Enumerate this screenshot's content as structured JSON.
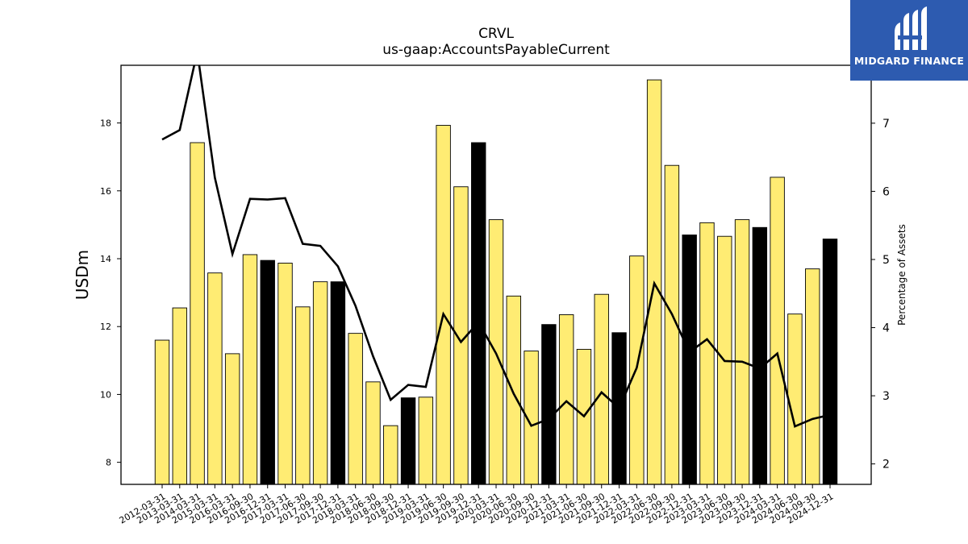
{
  "chart_data": {
    "type": "bar",
    "title": "CRVL",
    "subtitle": "us-gaap:AccountsPayableCurrent",
    "ylabel": "USDm",
    "y2label": "Percentage of Assets",
    "ylim": [
      7.35,
      19.7
    ],
    "y2lim": [
      1.7,
      7.85
    ],
    "yticks": [
      8,
      10,
      12,
      14,
      16,
      18
    ],
    "y2ticks": [
      2,
      3,
      4,
      5,
      6,
      7
    ],
    "colors": {
      "bar_quarter": "#ffec73",
      "bar_year_end": "#000000",
      "line": "#000000"
    },
    "categories": [
      "2012-03-31",
      "2013-03-31",
      "2014-03-31",
      "2015-03-31",
      "2016-03-31",
      "2016-09-30",
      "2016-12-31",
      "2017-03-31",
      "2017-06-30",
      "2017-09-30",
      "2017-12-31",
      "2018-03-31",
      "2018-06-30",
      "2018-09-30",
      "2018-12-31",
      "2019-03-31",
      "2019-06-30",
      "2019-09-30",
      "2019-12-31",
      "2020-03-31",
      "2020-06-30",
      "2020-09-30",
      "2020-12-31",
      "2021-03-31",
      "2021-06-30",
      "2021-09-30",
      "2021-12-31",
      "2022-03-31",
      "2022-06-30",
      "2022-09-30",
      "2022-12-31",
      "2023-03-31",
      "2023-06-30",
      "2023-09-30",
      "2023-12-31",
      "2024-03-31",
      "2024-06-30",
      "2024-09-30",
      "2024-12-31"
    ],
    "series": [
      {
        "values": [
          11.6,
          12.55,
          17.42,
          13.58,
          11.2,
          14.12,
          13.95,
          13.87,
          12.58,
          13.32,
          13.32,
          11.8,
          10.37,
          9.08,
          9.9,
          9.92,
          17.93,
          16.12,
          17.42,
          15.15,
          12.9,
          11.28,
          12.06,
          12.35,
          11.33,
          12.95,
          11.82,
          14.08,
          19.27,
          16.75,
          14.7,
          15.06,
          14.66,
          15.15,
          14.92,
          16.4,
          12.37,
          13.7,
          14.58
        ],
        "year_end": [
          false,
          false,
          false,
          false,
          false,
          false,
          true,
          false,
          false,
          false,
          true,
          false,
          false,
          false,
          true,
          false,
          false,
          false,
          true,
          false,
          false,
          false,
          true,
          false,
          false,
          false,
          true,
          false,
          false,
          false,
          true,
          false,
          false,
          false,
          true,
          false,
          false,
          false,
          true
        ]
      },
      {
        "values": [
          6.76,
          6.9,
          8.05,
          6.2,
          5.08,
          5.89,
          5.88,
          5.9,
          5.23,
          5.2,
          4.9,
          4.32,
          3.58,
          2.94,
          3.16,
          3.13,
          4.2,
          3.79,
          4.08,
          3.62,
          3.03,
          2.56,
          2.66,
          2.92,
          2.7,
          3.05,
          2.82,
          3.41,
          4.65,
          4.2,
          3.64,
          3.83,
          3.51,
          3.5,
          3.4,
          3.62,
          2.55,
          2.66,
          2.72
        ]
      }
    ]
  },
  "logo": {
    "text": "MIDGARD FINANCE",
    "icon": "midgard-logo-icon"
  }
}
